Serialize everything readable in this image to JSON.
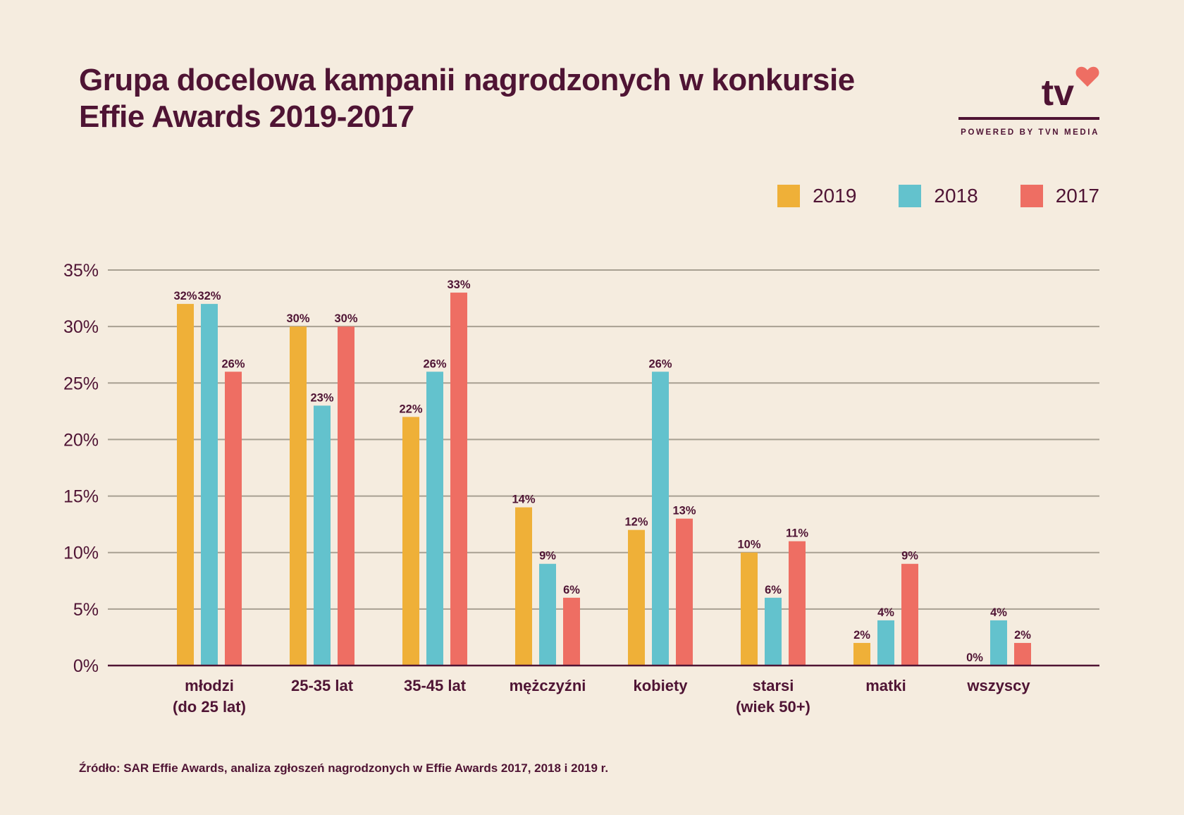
{
  "title_lines": [
    "Grupa docelowa kampanii nagrodzonych w konkursie",
    "Effie Awards 2019-2017"
  ],
  "brand": {
    "logo": "tv",
    "powered": "POWERED BY TVN MEDIA",
    "heart_icon": "heart-icon"
  },
  "source": "Źródło: SAR Effie Awards, analiza zgłoszeń nagrodzonych w Effie Awards 2017, 2018 i 2019 r.",
  "colors": {
    "background": "#f5ecdf",
    "text": "#4f1434",
    "grid": "#a8a092"
  },
  "chart_data": {
    "type": "bar",
    "categories": [
      [
        "młodzi",
        "(do 25 lat)"
      ],
      [
        "25-35 lat"
      ],
      [
        "35-45 lat"
      ],
      [
        "mężczyźni"
      ],
      [
        "kobiety"
      ],
      [
        "starsi",
        "(wiek 50+)"
      ],
      [
        "matki"
      ],
      [
        "wszyscy"
      ]
    ],
    "series": [
      {
        "name": "2019",
        "color": "#efb038",
        "values": [
          32,
          30,
          22,
          14,
          12,
          10,
          2,
          0
        ]
      },
      {
        "name": "2018",
        "color": "#63c2cd",
        "values": [
          32,
          23,
          26,
          9,
          26,
          6,
          4,
          4
        ]
      },
      {
        "name": "2017",
        "color": "#ee6e63",
        "values": [
          26,
          30,
          33,
          6,
          13,
          11,
          9,
          2
        ]
      }
    ],
    "data_labels": [
      [
        "32%",
        "30%",
        "22%",
        "14%",
        "12%",
        "10%",
        "2%",
        "0%"
      ],
      [
        "32%",
        "23%",
        "26%",
        "9%",
        "26%",
        "6%",
        "4%",
        "4%"
      ],
      [
        "26%",
        "30%",
        "33%",
        "6%",
        "13%",
        "11%",
        "9%",
        "2%"
      ]
    ],
    "y_ticks": [
      0,
      5,
      10,
      15,
      20,
      25,
      30,
      35
    ],
    "y_tick_labels": [
      "0%",
      "5%",
      "10%",
      "15%",
      "20%",
      "25%",
      "30%",
      "35%"
    ],
    "ylim": [
      0,
      35
    ],
    "grid": true,
    "legend_position": "top-right"
  }
}
